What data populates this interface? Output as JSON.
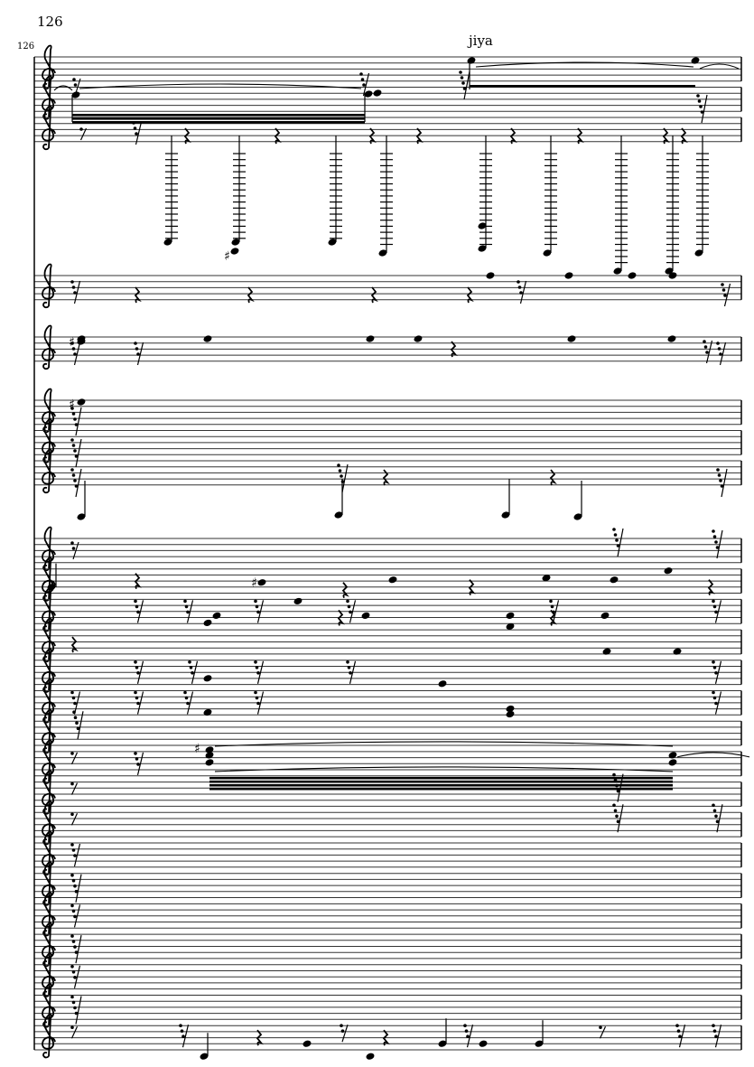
{
  "page": {
    "page_number": "126",
    "measure_number": "126",
    "text_mark": "jiya"
  },
  "score": {
    "clef": "treble-clef-icon",
    "ink_color": "#000000",
    "staff_line_color": "#333333"
  }
}
